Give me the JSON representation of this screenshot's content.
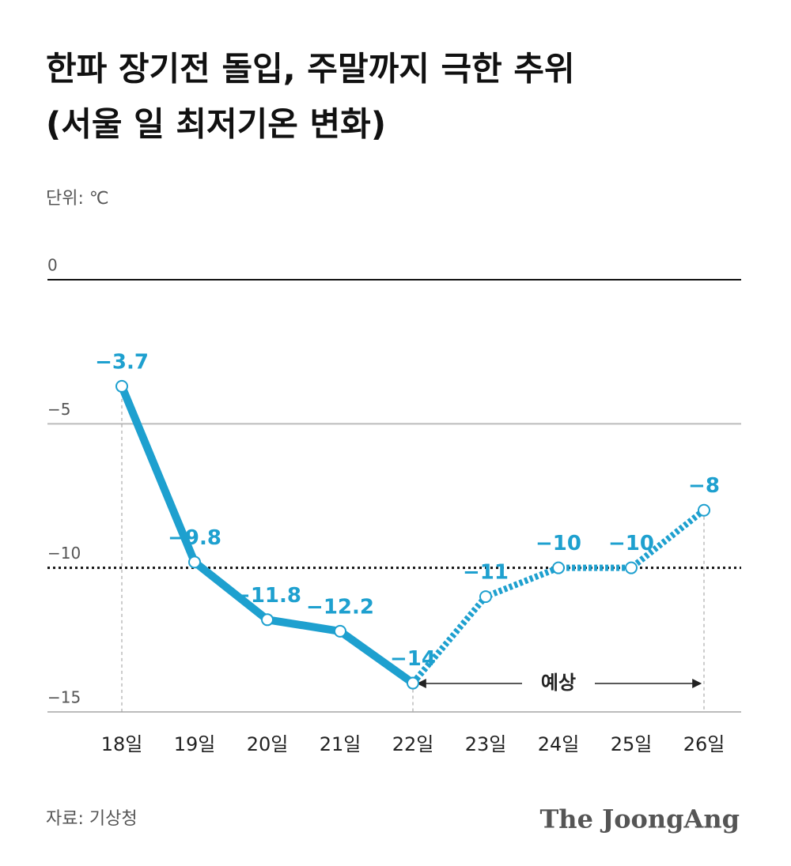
{
  "chart_data": {
    "type": "line",
    "title": "한파 장기전 돌입, 주말까지 극한 추위",
    "subtitle": "(서울 일 최저기온 변화)",
    "unit_label": "단위: ℃",
    "source": "자료: 기상청",
    "logo": "The JoongAng",
    "categories": [
      "18일",
      "19일",
      "20일",
      "21일",
      "22일",
      "23일",
      "24일",
      "25일",
      "26일"
    ],
    "series": [
      {
        "name": "서울 일 최저기온",
        "color": "#1ea0cf",
        "values": [
          -3.7,
          -9.8,
          -11.8,
          -12.2,
          -14,
          -11,
          -10,
          -10,
          -8
        ],
        "value_labels": [
          "−3.7",
          "−9.8",
          "−11.8",
          "−12.2",
          "−14",
          "−11",
          "−10",
          "−10",
          "−8"
        ]
      }
    ],
    "annotation": {
      "text": "예상",
      "from": "22일",
      "to": "26일"
    },
    "ylim": [
      -15,
      0
    ],
    "yticks": [
      0,
      {
        "value": -5,
        "label": "−5"
      },
      {
        "value": -10,
        "label": "−10"
      },
      {
        "value": -15,
        "label": "−15"
      }
    ],
    "reference_line": -10
  }
}
